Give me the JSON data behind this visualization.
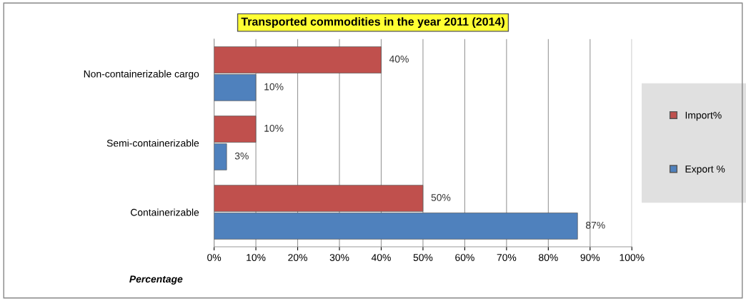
{
  "chart_data": {
    "type": "bar",
    "orientation": "horizontal",
    "title": "Transported commodities in the year 2011 (2014)",
    "xlabel": "Percentage",
    "categories": [
      "Non-containerizable cargo",
      "Semi-containerizable",
      "Containerizable"
    ],
    "series": [
      {
        "name": "Import%",
        "color": "#c0504d",
        "values": [
          40,
          10,
          50
        ],
        "value_labels": [
          "40%",
          "10%",
          "50%"
        ]
      },
      {
        "name": "Export %",
        "color": "#4f81bd",
        "values": [
          10,
          3,
          87
        ],
        "value_labels": [
          "10%",
          "3%",
          "87%"
        ]
      }
    ],
    "xlim": [
      0,
      100
    ],
    "xticks": [
      {
        "value": 0,
        "label": "0%"
      },
      {
        "value": 10,
        "label": "10%"
      },
      {
        "value": 20,
        "label": "20%"
      },
      {
        "value": 30,
        "label": "30%"
      },
      {
        "value": 40,
        "label": "40%"
      },
      {
        "value": 50,
        "label": "50%"
      },
      {
        "value": 60,
        "label": "60%"
      },
      {
        "value": 70,
        "label": "70%"
      },
      {
        "value": 80,
        "label": "80%"
      },
      {
        "value": 90,
        "label": "90%"
      },
      {
        "value": 100,
        "label": "100%"
      }
    ],
    "grid": "x",
    "legend": "right"
  }
}
